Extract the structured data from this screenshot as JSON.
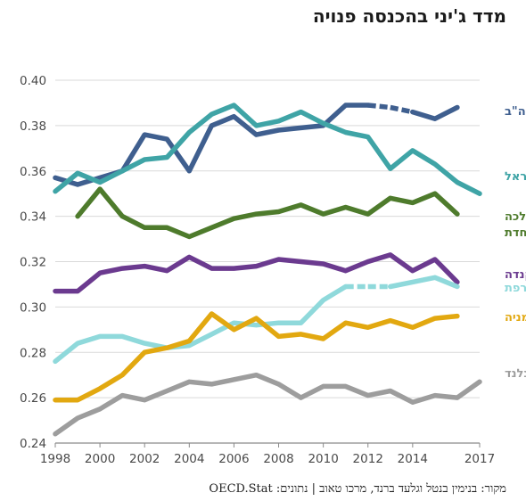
{
  "title": "מדד ג'יני בהכנסה פנויה",
  "source": "מקור: בנימין בנטל וגלעד ברנד, מרכו טאוב | נתונים: OECD.Stat",
  "chart_data": {
    "type": "line",
    "x_ticks": [
      1998,
      2000,
      2002,
      2004,
      2006,
      2008,
      2010,
      2012,
      2014,
      2017
    ],
    "y_ticks": [
      "0.24",
      "0.26",
      "0.28",
      "0.30",
      "0.32",
      "0.34",
      "0.36",
      "0.38",
      "0.40"
    ],
    "xlim": [
      1998,
      2017
    ],
    "ylim": [
      0.24,
      0.4
    ],
    "grid": "horizontal",
    "series": [
      {
        "name": "ארה\"ב",
        "color": "#3f5f8f",
        "x": [
          1998,
          1999,
          2000,
          2001,
          2002,
          2003,
          2004,
          2005,
          2006,
          2007,
          2008,
          2009,
          2010,
          2011,
          2012,
          2013,
          2014,
          2015,
          2016
        ],
        "values": [
          0.357,
          0.354,
          0.357,
          0.36,
          0.376,
          0.374,
          0.36,
          0.38,
          0.384,
          0.376,
          0.378,
          0.379,
          0.38,
          0.389,
          0.389,
          0.388,
          0.386,
          0.383,
          0.388
        ],
        "dashed_between": [
          2012,
          2014
        ]
      },
      {
        "name": "ישראל",
        "color": "#3fa4a6",
        "x": [
          1998,
          1999,
          2000,
          2001,
          2002,
          2003,
          2004,
          2005,
          2006,
          2007,
          2008,
          2009,
          2010,
          2011,
          2012,
          2013,
          2014,
          2015,
          2016,
          2017
        ],
        "values": [
          0.351,
          0.359,
          0.355,
          0.36,
          0.365,
          0.366,
          0.377,
          0.385,
          0.389,
          0.38,
          0.382,
          0.386,
          0.381,
          0.377,
          0.375,
          0.361,
          0.369,
          0.363,
          0.355,
          0.35
        ]
      },
      {
        "name": "הממלכה המאוחדת",
        "color": "#4e7b2c",
        "x": [
          1999,
          2000,
          2001,
          2002,
          2003,
          2004,
          2005,
          2006,
          2007,
          2008,
          2009,
          2010,
          2011,
          2012,
          2013,
          2014,
          2015,
          2016
        ],
        "values": [
          0.34,
          0.352,
          0.34,
          0.335,
          0.335,
          0.331,
          0.335,
          0.339,
          0.341,
          0.342,
          0.345,
          0.341,
          0.344,
          0.341,
          0.348,
          0.346,
          0.35,
          0.341
        ]
      },
      {
        "name": "קנדה",
        "color": "#6b3a8f",
        "x": [
          1998,
          1999,
          2000,
          2001,
          2002,
          2003,
          2004,
          2005,
          2006,
          2007,
          2008,
          2009,
          2010,
          2011,
          2012,
          2013,
          2014,
          2015,
          2016
        ],
        "values": [
          0.307,
          0.307,
          0.315,
          0.317,
          0.318,
          0.316,
          0.322,
          0.317,
          0.317,
          0.318,
          0.321,
          0.32,
          0.319,
          0.316,
          0.32,
          0.323,
          0.316,
          0.321,
          0.311
        ]
      },
      {
        "name": "צרפת",
        "color": "#8fd9db",
        "x": [
          1998,
          1999,
          2000,
          2001,
          2002,
          2003,
          2004,
          2005,
          2006,
          2007,
          2008,
          2009,
          2010,
          2011,
          2012,
          2013,
          2014,
          2015,
          2016
        ],
        "values": [
          0.276,
          0.284,
          0.287,
          0.287,
          0.284,
          0.282,
          0.283,
          0.288,
          0.293,
          0.292,
          0.293,
          0.293,
          0.303,
          0.309,
          0.309,
          0.309,
          0.311,
          0.313,
          0.309
        ],
        "dashed_between": [
          2011,
          2013
        ]
      },
      {
        "name": "גרמניה",
        "color": "#e2a810",
        "x": [
          1998,
          1999,
          2000,
          2001,
          2002,
          2003,
          2004,
          2005,
          2006,
          2007,
          2008,
          2009,
          2010,
          2011,
          2012,
          2013,
          2014,
          2015,
          2016
        ],
        "values": [
          0.259,
          0.259,
          0.264,
          0.27,
          0.28,
          0.282,
          0.285,
          0.297,
          0.29,
          0.295,
          0.287,
          0.288,
          0.286,
          0.293,
          0.291,
          0.294,
          0.291,
          0.295,
          0.296
        ]
      },
      {
        "name": "פינלנד",
        "color": "#9d9d9d",
        "x": [
          1998,
          1999,
          2000,
          2001,
          2002,
          2003,
          2004,
          2005,
          2006,
          2007,
          2008,
          2009,
          2010,
          2011,
          2012,
          2013,
          2014,
          2015,
          2016,
          2017
        ],
        "values": [
          0.244,
          0.251,
          0.255,
          0.261,
          0.259,
          0.263,
          0.267,
          0.266,
          0.268,
          0.27,
          0.266,
          0.26,
          0.265,
          0.265,
          0.261,
          0.263,
          0.258,
          0.261,
          0.26,
          0.267
        ]
      }
    ]
  }
}
